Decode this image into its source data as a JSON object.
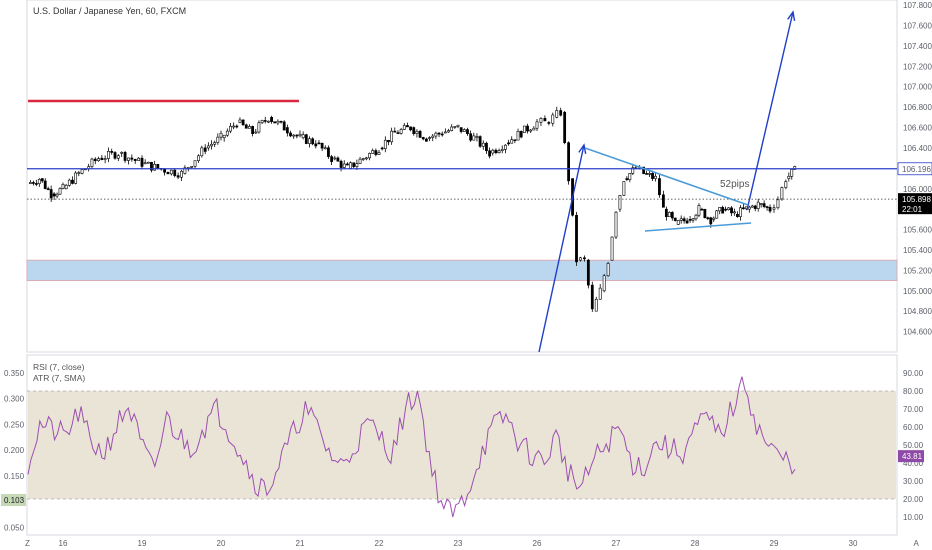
{
  "chart_data": {
    "type": "candlestick",
    "title": "U.S. Dollar / Japanese Yen, 60, FXCM",
    "price_axis": {
      "range": [
        104.4,
        107.85
      ],
      "ticks": [
        104.6,
        104.8,
        105.0,
        105.2,
        105.4,
        105.6,
        105.8,
        106.0,
        106.2,
        106.4,
        106.6,
        106.8,
        107.0,
        107.2,
        107.4,
        107.6,
        107.8
      ],
      "tick_labels": [
        "104.600",
        "104.800",
        "105.000",
        "105.200",
        "105.400",
        "105.600",
        "105.800",
        "106.000",
        "106.200",
        "106.400",
        "106.600",
        "106.800",
        "107.000",
        "107.200",
        "107.400",
        "107.600",
        "107.800"
      ]
    },
    "x_axis": {
      "labels": [
        "Z",
        "16",
        "19",
        "20",
        "21",
        "22",
        "23",
        "26",
        "27",
        "28",
        "29",
        "30",
        "A"
      ],
      "label_days": [
        -0.45,
        0,
        1,
        2,
        3,
        4,
        5,
        6,
        7,
        8,
        9,
        10,
        10.8
      ]
    },
    "series": {
      "close": [
        106.05,
        106.1,
        105.95,
        106.0,
        106.15,
        106.3,
        106.35,
        106.25,
        106.2,
        106.15,
        106.4,
        106.5,
        106.65,
        106.55,
        106.7,
        106.6,
        106.5,
        106.45,
        106.3,
        106.2,
        106.3,
        106.4,
        106.55,
        106.6,
        106.5,
        106.55,
        106.6,
        106.5,
        106.35,
        106.45,
        106.55,
        106.65,
        106.65,
        106.7,
        106.75,
        106.1,
        105.3,
        105.3,
        104.8,
        105.0,
        105.3,
        105.8,
        106.1,
        106.2,
        106.15,
        106.1,
        105.8,
        105.65,
        105.7,
        105.8,
        105.7,
        105.8,
        105.75,
        105.8,
        105.85,
        105.8,
        105.9,
        106.1,
        106.2,
        106.1,
        105.95,
        105.9
      ],
      "day_positions": [
        -0.45,
        -0.3,
        -0.15,
        0.0,
        0.2,
        0.45,
        0.7,
        1.0,
        1.2,
        1.5,
        1.8,
        2.0,
        2.2,
        2.4,
        2.6,
        2.8,
        3.0,
        3.2,
        3.4,
        3.6,
        3.8,
        4.0,
        4.2,
        4.4,
        4.6,
        4.8,
        5.0,
        5.2,
        5.4,
        5.6,
        5.8,
        6.0,
        6.1,
        6.2,
        6.3,
        6.4,
        6.5,
        6.6,
        6.7,
        6.8,
        6.9,
        7.0,
        7.1,
        7.25,
        7.35,
        7.5,
        7.6,
        7.75,
        7.9,
        8.05,
        8.2,
        8.35,
        8.5,
        8.65,
        8.8,
        8.95,
        9.05,
        9.15,
        9.3,
        9.45,
        9.6,
        9.75
      ]
    },
    "current_price": "105.898",
    "countdown": "22:01",
    "resistance_label": "106.196",
    "resistance_level": 106.196,
    "old_level_red": 106.86,
    "zone": {
      "from": 105.1,
      "to": 105.3,
      "color": "#bbd7ef"
    },
    "annotations": [
      "52pips"
    ],
    "rsi": {
      "legend": "RSI (7, close)",
      "range": [
        0,
        100
      ],
      "ticks": [
        10,
        20,
        30,
        40,
        50,
        60,
        70,
        80,
        90
      ],
      "tick_labels": [
        "10.00",
        "20.00",
        "30.00",
        "40.00",
        "50.00",
        "60.00",
        "70.00",
        "80.00",
        "90.00"
      ],
      "band": [
        20,
        80
      ],
      "current": "43.81",
      "values": [
        40,
        62,
        58,
        55,
        68,
        52,
        45,
        60,
        72,
        50,
        35,
        65,
        55,
        48,
        60,
        70,
        58,
        45,
        30,
        25,
        40,
        55,
        70,
        60,
        45,
        38,
        50,
        62,
        55,
        45,
        70,
        80,
        40,
        15,
        12,
        25,
        45,
        60,
        66,
        52,
        45,
        40,
        55,
        35,
        25,
        42,
        50,
        60,
        40,
        38,
        52,
        48,
        45,
        58,
        65,
        55,
        70,
        85,
        60,
        48,
        42,
        40
      ]
    },
    "atr": {
      "legend": "ATR (7, SMA)",
      "range": [
        0.035,
        0.385
      ],
      "ticks": [
        0.05,
        0.1,
        0.15,
        0.2,
        0.25,
        0.3,
        0.35
      ],
      "tick_labels": [
        "0.050",
        "0.100",
        "0.150",
        "0.200",
        "0.250",
        "0.300",
        "0.350"
      ],
      "current": "0.103"
    },
    "colors": {
      "up": "#ffffff",
      "down": "#000000",
      "resistance": "#2e3fc7",
      "old_level": "#d8283d",
      "arrow": "#1f3fc9",
      "triangle": "#4b9bd9",
      "rsi_line": "#9c4fb1",
      "band": "#e9e4d5"
    }
  }
}
